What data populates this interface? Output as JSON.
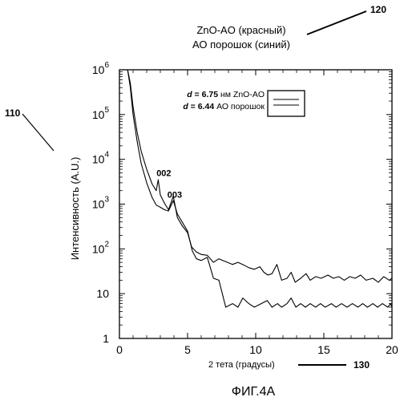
{
  "figure_caption": "ФИГ.4А",
  "header": {
    "line1": "ZnO-AO (красный)",
    "line2": "АО порошок (синий)"
  },
  "reference_numerals": {
    "chart": "110",
    "header": "120",
    "x_axis": "130"
  },
  "chart_data": {
    "type": "line",
    "title": "",
    "xlabel": "2 тета (градусы)",
    "ylabel": "Интенсивность (A.U.)",
    "xlim": [
      0,
      20
    ],
    "ylim": [
      1,
      1000000
    ],
    "y_scale": "log",
    "grid": false,
    "legend_placement": "top-right",
    "x_ticks": [
      0,
      5,
      10,
      15,
      20
    ],
    "x_tick_labels": [
      "0",
      "5",
      "10",
      "15",
      "20"
    ],
    "y_ticks": [
      1,
      10,
      100,
      1000,
      10000,
      100000,
      1000000
    ],
    "y_tick_labels": [
      {
        "base": "1",
        "exp": ""
      },
      {
        "base": "10",
        "exp": ""
      },
      {
        "base": "10",
        "exp": "2"
      },
      {
        "base": "10",
        "exp": "3"
      },
      {
        "base": "10",
        "exp": "4"
      },
      {
        "base": "10",
        "exp": "5"
      },
      {
        "base": "10",
        "exp": "6"
      }
    ],
    "legend": {
      "lines": [
        {
          "var": "d",
          "eq": " = ",
          "value": "6.75",
          "rest": " нм ZnO-AO"
        },
        {
          "var": "d",
          "eq": " = ",
          "value": "6.44",
          "rest": " АО порошок"
        }
      ]
    },
    "annotations": [
      {
        "text": "002",
        "x": 2.6,
        "y": 4200
      },
      {
        "text": "003",
        "x": 3.4,
        "y": 1400
      }
    ],
    "series": [
      {
        "x": [
          0.6,
          0.8,
          1.0,
          1.3,
          1.6,
          2.0,
          2.4,
          2.7,
          2.85,
          3.0,
          3.3,
          3.6,
          3.95,
          4.25,
          4.6,
          5.0,
          5.3,
          5.65,
          6.0,
          6.45,
          6.9,
          7.3,
          7.8,
          8.3,
          8.7,
          9.1,
          9.5,
          9.9,
          10.3,
          10.6,
          10.9,
          11.2,
          11.55,
          11.9,
          12.3,
          12.6,
          12.9,
          13.3,
          13.7,
          14.0,
          14.4,
          14.8,
          15.3,
          15.7,
          16.1,
          16.5,
          16.9,
          17.3,
          17.7,
          18.1,
          18.6,
          19.0,
          19.4,
          19.8,
          20.0
        ],
        "y": [
          1000000,
          500000,
          150000,
          40000,
          15000,
          6000,
          2800,
          2000,
          3500,
          1600,
          1050,
          750,
          1500,
          500,
          330,
          230,
          110,
          85,
          75,
          72,
          50,
          60,
          52,
          45,
          50,
          44,
          38,
          35,
          40,
          30,
          26,
          28,
          45,
          20,
          22,
          30,
          18,
          22,
          28,
          20,
          24,
          22,
          26,
          22,
          24,
          20,
          24,
          22,
          26,
          20,
          22,
          18,
          24,
          20,
          22
        ]
      },
      {
        "x": [
          0.6,
          0.8,
          1.0,
          1.3,
          1.6,
          2.0,
          2.4,
          2.7,
          3.0,
          3.3,
          3.6,
          3.95,
          4.25,
          4.6,
          5.0,
          5.35,
          5.65,
          6.0,
          6.45,
          6.9,
          7.3,
          7.8,
          8.3,
          8.7,
          9.05,
          9.5,
          9.9,
          10.4,
          10.85,
          11.2,
          11.6,
          11.9,
          12.3,
          12.6,
          12.95,
          13.3,
          13.65,
          14.0,
          14.4,
          14.75,
          15.1,
          15.55,
          15.9,
          16.3,
          16.7,
          17.1,
          17.5,
          17.85,
          18.2,
          18.6,
          18.95,
          19.3,
          19.7,
          19.9,
          20.0
        ],
        "y": [
          1000000,
          400000,
          100000,
          25000,
          8000,
          3000,
          1400,
          950,
          850,
          750,
          700,
          1200,
          600,
          400,
          250,
          90,
          60,
          55,
          65,
          22,
          20,
          5,
          6,
          5,
          8,
          6,
          5,
          6,
          7,
          5,
          6,
          5,
          6,
          8,
          5,
          6,
          5,
          6,
          5,
          6,
          5,
          6,
          5,
          6,
          5,
          6,
          5,
          6,
          5,
          6,
          5,
          6,
          5,
          6,
          5
        ]
      }
    ]
  }
}
